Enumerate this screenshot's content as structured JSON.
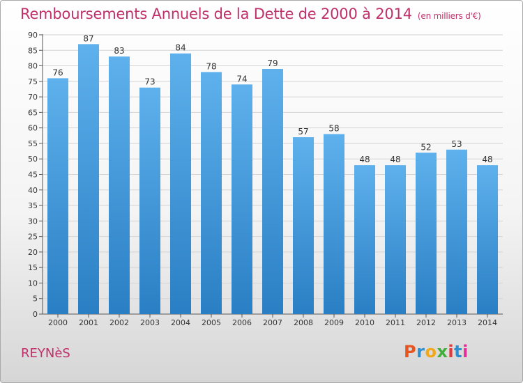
{
  "title": "Remboursements Annuels de la Dette de 2000 à 2014",
  "unit_label": "(en milliers d'€)",
  "town": "REYNèS",
  "brand": {
    "letters": [
      "P",
      "r",
      "o",
      "x",
      "i",
      "t",
      "i"
    ],
    "colors": [
      "#e8541f",
      "#2f8fce",
      "#f2a81d",
      "#3fae3b",
      "#e23b3b",
      "#2f8fce",
      "#e2309a"
    ]
  },
  "colors": {
    "bar_light": "#5eb1ec",
    "bar_dark": "#2a7fc4",
    "title": "#c0306a",
    "grid": "#d3d3d3"
  },
  "chart_data": {
    "type": "bar",
    "title": "Remboursements Annuels de la Dette de 2000 à 2014",
    "xlabel": "",
    "ylabel": "",
    "categories": [
      "2000",
      "2001",
      "2002",
      "2003",
      "2004",
      "2005",
      "2006",
      "2007",
      "2008",
      "2009",
      "2010",
      "2011",
      "2012",
      "2013",
      "2014"
    ],
    "values": [
      76,
      87,
      83,
      73,
      84,
      78,
      74,
      79,
      57,
      58,
      48,
      48,
      52,
      53,
      48
    ],
    "ylim": [
      0,
      90
    ],
    "yticks": [
      0,
      5,
      10,
      15,
      20,
      25,
      30,
      35,
      40,
      45,
      50,
      55,
      60,
      65,
      70,
      75,
      80,
      85,
      90
    ],
    "grid": true,
    "legend": "none"
  }
}
